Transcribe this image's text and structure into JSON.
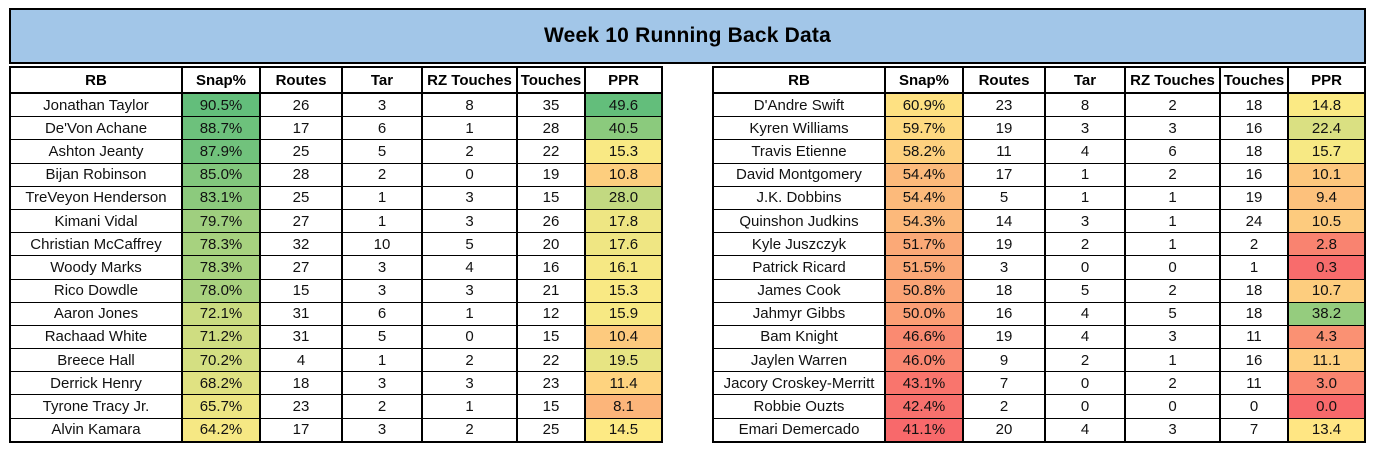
{
  "title": "Week 10 Running Back Data",
  "theme": {
    "title_bg": "#A2C6E8",
    "border": "#000000",
    "scale_green": "#63BE7B",
    "scale_yellow": "#FFEB84",
    "scale_red": "#F8696B"
  },
  "columns": [
    {
      "key": "rb",
      "label": "RB"
    },
    {
      "key": "snap",
      "label": "Snap%"
    },
    {
      "key": "routes",
      "label": "Routes"
    },
    {
      "key": "tar",
      "label": "Tar"
    },
    {
      "key": "rz",
      "label": "RZ Touches"
    },
    {
      "key": "touches",
      "label": "Touches"
    },
    {
      "key": "ppr",
      "label": "PPR"
    }
  ],
  "tables": [
    {
      "name": "left",
      "rows": [
        {
          "rb": "Jonathan Taylor",
          "snap": "90.5%",
          "snap_color": "#63BE7B",
          "routes": "26",
          "tar": "3",
          "rz": "8",
          "touches": "35",
          "ppr": "49.6",
          "ppr_color": "#63BE7B"
        },
        {
          "rb": "De'Von Achane",
          "snap": "88.7%",
          "snap_color": "#6DC17C",
          "routes": "17",
          "tar": "6",
          "rz": "1",
          "touches": "28",
          "ppr": "40.5",
          "ppr_color": "#8BCA7D"
        },
        {
          "rb": "Ashton Jeanty",
          "snap": "87.9%",
          "snap_color": "#71C27C",
          "routes": "25",
          "tar": "5",
          "rz": "2",
          "touches": "22",
          "ppr": "15.3",
          "ppr_color": "#F9E984"
        },
        {
          "rb": "Bijan Robinson",
          "snap": "85.0%",
          "snap_color": "#82C77D",
          "routes": "28",
          "tar": "2",
          "rz": "0",
          "touches": "19",
          "ppr": "10.8",
          "ppr_color": "#FDCE7E"
        },
        {
          "rb": "TreVeyon Henderson",
          "snap": "83.1%",
          "snap_color": "#8CCA7D",
          "routes": "25",
          "tar": "1",
          "rz": "3",
          "touches": "15",
          "ppr": "28.0",
          "ppr_color": "#C2D981"
        },
        {
          "rb": "Kimani Vidal",
          "snap": "79.7%",
          "snap_color": "#9FCF7F",
          "routes": "27",
          "tar": "1",
          "rz": "3",
          "touches": "26",
          "ppr": "17.8",
          "ppr_color": "#EEE683"
        },
        {
          "rb": "Christian McCaffrey",
          "snap": "78.3%",
          "snap_color": "#A7D27F",
          "routes": "32",
          "tar": "10",
          "rz": "5",
          "touches": "20",
          "ppr": "17.6",
          "ppr_color": "#EFE683"
        },
        {
          "rb": "Woody Marks",
          "snap": "78.3%",
          "snap_color": "#A7D27F",
          "routes": "27",
          "tar": "3",
          "rz": "4",
          "touches": "16",
          "ppr": "16.1",
          "ppr_color": "#F6E884"
        },
        {
          "rb": "Rico Dowdle",
          "snap": "78.0%",
          "snap_color": "#A9D27F",
          "routes": "15",
          "tar": "3",
          "rz": "3",
          "touches": "21",
          "ppr": "15.3",
          "ppr_color": "#F9E984"
        },
        {
          "rb": "Aaron Jones",
          "snap": "72.1%",
          "snap_color": "#CADC81",
          "routes": "31",
          "tar": "6",
          "rz": "1",
          "touches": "12",
          "ppr": "15.9",
          "ppr_color": "#F7E984"
        },
        {
          "rb": "Rachaad White",
          "snap": "71.2%",
          "snap_color": "#CFDD81",
          "routes": "31",
          "tar": "5",
          "rz": "0",
          "touches": "15",
          "ppr": "10.4",
          "ppr_color": "#FDCA7E"
        },
        {
          "rb": "Breece Hall",
          "snap": "70.2%",
          "snap_color": "#D4DF82",
          "routes": "4",
          "tar": "1",
          "rz": "2",
          "touches": "22",
          "ppr": "19.5",
          "ppr_color": "#E7E483"
        },
        {
          "rb": "Derrick Henry",
          "snap": "68.2%",
          "snap_color": "#E0E282",
          "routes": "18",
          "tar": "3",
          "rz": "3",
          "touches": "23",
          "ppr": "11.4",
          "ppr_color": "#FED37F"
        },
        {
          "rb": "Tyrone Tracy Jr.",
          "snap": "65.7%",
          "snap_color": "#EDE683",
          "routes": "23",
          "tar": "2",
          "rz": "1",
          "touches": "15",
          "ppr": "8.1",
          "ppr_color": "#FCB57A"
        },
        {
          "rb": "Alvin Kamara",
          "snap": "64.2%",
          "snap_color": "#F6E884",
          "routes": "17",
          "tar": "3",
          "rz": "2",
          "touches": "25",
          "ppr": "14.5",
          "ppr_color": "#FDEA84"
        }
      ]
    },
    {
      "name": "right",
      "rows": [
        {
          "rb": "D'Andre Swift",
          "snap": "60.9%",
          "snap_color": "#FEE182",
          "routes": "23",
          "tar": "8",
          "rz": "2",
          "touches": "18",
          "ppr": "14.8",
          "ppr_color": "#FBEA84"
        },
        {
          "rb": "Kyren Williams",
          "snap": "59.7%",
          "snap_color": "#FEDA81",
          "routes": "19",
          "tar": "3",
          "rz": "3",
          "touches": "16",
          "ppr": "22.4",
          "ppr_color": "#DAE082"
        },
        {
          "rb": "Travis Etienne",
          "snap": "58.2%",
          "snap_color": "#FED17F",
          "routes": "11",
          "tar": "4",
          "rz": "6",
          "touches": "18",
          "ppr": "15.7",
          "ppr_color": "#F7E984"
        },
        {
          "rb": "David Montgomery",
          "snap": "54.4%",
          "snap_color": "#FCBA7B",
          "routes": "17",
          "tar": "1",
          "rz": "2",
          "touches": "16",
          "ppr": "10.1",
          "ppr_color": "#FDC77D"
        },
        {
          "rb": "J.K. Dobbins",
          "snap": "54.4%",
          "snap_color": "#FCBA7B",
          "routes": "5",
          "tar": "1",
          "rz": "1",
          "touches": "19",
          "ppr": "9.4",
          "ppr_color": "#FDC17C"
        },
        {
          "rb": "Quinshon Judkins",
          "snap": "54.3%",
          "snap_color": "#FCB97B",
          "routes": "14",
          "tar": "3",
          "rz": "1",
          "touches": "24",
          "ppr": "10.5",
          "ppr_color": "#FDCB7E"
        },
        {
          "rb": "Kyle Juszczyk",
          "snap": "51.7%",
          "snap_color": "#FBA977",
          "routes": "19",
          "tar": "2",
          "rz": "1",
          "touches": "2",
          "ppr": "2.8",
          "ppr_color": "#F98370"
        },
        {
          "rb": "Patrick Ricard",
          "snap": "51.5%",
          "snap_color": "#FBA877",
          "routes": "3",
          "tar": "0",
          "rz": "0",
          "touches": "1",
          "ppr": "0.3",
          "ppr_color": "#F86C6C"
        },
        {
          "rb": "James Cook",
          "snap": "50.8%",
          "snap_color": "#FBA476",
          "routes": "18",
          "tar": "5",
          "rz": "2",
          "touches": "18",
          "ppr": "10.7",
          "ppr_color": "#FDCD7E"
        },
        {
          "rb": "Jahmyr Gibbs",
          "snap": "50.0%",
          "snap_color": "#FB9F75",
          "routes": "16",
          "tar": "4",
          "rz": "5",
          "touches": "18",
          "ppr": "38.2",
          "ppr_color": "#95CC7E"
        },
        {
          "rb": "Bam Knight",
          "snap": "46.6%",
          "snap_color": "#FA8A71",
          "routes": "19",
          "tar": "4",
          "rz": "3",
          "touches": "11",
          "ppr": "4.3",
          "ppr_color": "#FA9173"
        },
        {
          "rb": "Jaylen Warren",
          "snap": "46.0%",
          "snap_color": "#FA8771",
          "routes": "9",
          "tar": "2",
          "rz": "1",
          "touches": "16",
          "ppr": "11.1",
          "ppr_color": "#FED07F"
        },
        {
          "rb": "Jacory Croskey-Merritt",
          "snap": "43.1%",
          "snap_color": "#F9756D",
          "routes": "7",
          "tar": "0",
          "rz": "2",
          "touches": "11",
          "ppr": "3.0",
          "ppr_color": "#FA8570"
        },
        {
          "rb": "Robbie Ouzts",
          "snap": "42.4%",
          "snap_color": "#F8716D",
          "routes": "2",
          "tar": "0",
          "rz": "0",
          "touches": "0",
          "ppr": "0.0",
          "ppr_color": "#F8696B"
        },
        {
          "rb": "Emari Demercado",
          "snap": "41.1%",
          "snap_color": "#F8696B",
          "routes": "20",
          "tar": "4",
          "rz": "3",
          "touches": "7",
          "ppr": "13.4",
          "ppr_color": "#FFE683"
        }
      ]
    }
  ]
}
